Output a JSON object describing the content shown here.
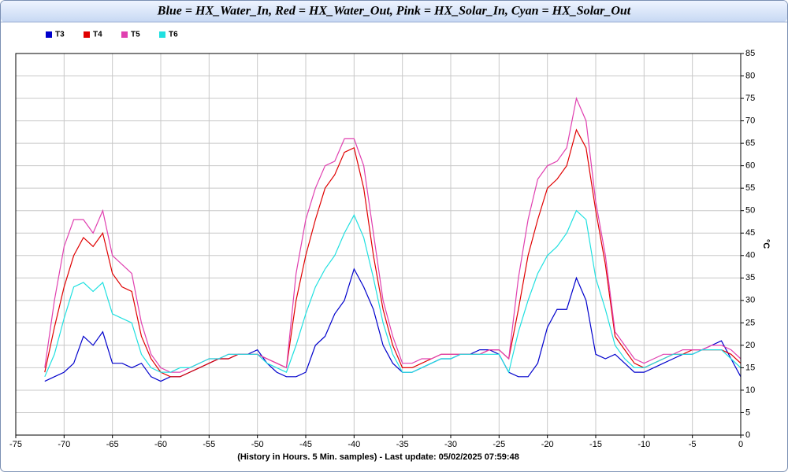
{
  "chart_data": {
    "type": "line",
    "title": "Blue = HX_Water_In, Red = HX_Water_Out, Pink = HX_Solar_In, Cyan = HX_Solar_Out",
    "x_label": "(History in Hours. 5 Min. samples) - Last update: 05/02/2025 07:59:48",
    "y_label": "°C",
    "x": [
      -72,
      -71,
      -70,
      -69,
      -68,
      -67,
      -66,
      -65,
      -64,
      -63,
      -62,
      -61,
      -60,
      -59,
      -58,
      -57,
      -56,
      -55,
      -54,
      -53,
      -52,
      -51,
      -50,
      -49,
      -48,
      -47,
      -46,
      -45,
      -44,
      -43,
      -42,
      -41,
      -40,
      -39,
      -38,
      -37,
      -36,
      -35,
      -34,
      -33,
      -32,
      -31,
      -30,
      -29,
      -28,
      -27,
      -26,
      -25,
      -24,
      -23,
      -22,
      -21,
      -20,
      -19,
      -18,
      -17,
      -16,
      -15,
      -14,
      -13,
      -12,
      -11,
      -10,
      -9,
      -8,
      -7,
      -6,
      -5,
      -4,
      -3,
      -2,
      -1,
      0
    ],
    "series": [
      {
        "name": "T3",
        "color": "#0000cc",
        "values": [
          12,
          13,
          14,
          16,
          22,
          20,
          23,
          16,
          16,
          15,
          16,
          13,
          12,
          13,
          13,
          14,
          15,
          16,
          17,
          17,
          18,
          18,
          19,
          16,
          14,
          13,
          13,
          14,
          20,
          22,
          27,
          30,
          37,
          33,
          28,
          20,
          16,
          14,
          14,
          15,
          16,
          17,
          17,
          18,
          18,
          19,
          19,
          18,
          14,
          13,
          13,
          16,
          24,
          28,
          28,
          35,
          30,
          18,
          17,
          18,
          16,
          14,
          14,
          15,
          16,
          17,
          18,
          18,
          19,
          20,
          21,
          17,
          13
        ]
      },
      {
        "name": "T4",
        "color": "#e00000",
        "values": [
          14,
          24,
          33,
          40,
          44,
          42,
          45,
          36,
          33,
          32,
          22,
          17,
          14,
          13,
          13,
          14,
          15,
          16,
          17,
          17,
          18,
          18,
          18,
          17,
          16,
          15,
          30,
          40,
          48,
          55,
          58,
          63,
          64,
          55,
          40,
          28,
          20,
          15,
          15,
          16,
          17,
          18,
          18,
          18,
          18,
          18,
          19,
          19,
          17,
          28,
          40,
          48,
          55,
          57,
          60,
          68,
          64,
          50,
          38,
          22,
          19,
          16,
          15,
          16,
          17,
          18,
          18,
          19,
          19,
          19,
          19,
          18,
          16
        ]
      },
      {
        "name": "T5",
        "color": "#e040b0",
        "values": [
          15,
          30,
          42,
          48,
          48,
          45,
          50,
          40,
          38,
          36,
          25,
          18,
          15,
          14,
          14,
          15,
          16,
          17,
          17,
          18,
          18,
          18,
          18,
          17,
          16,
          15,
          36,
          48,
          55,
          60,
          61,
          66,
          66,
          60,
          45,
          30,
          22,
          16,
          16,
          17,
          17,
          18,
          18,
          18,
          18,
          18,
          19,
          19,
          17,
          35,
          48,
          57,
          60,
          61,
          64,
          75,
          70,
          52,
          40,
          23,
          20,
          17,
          16,
          17,
          18,
          18,
          19,
          19,
          19,
          20,
          20,
          19,
          17
        ]
      },
      {
        "name": "T6",
        "color": "#20e0e0",
        "values": [
          13,
          18,
          26,
          33,
          34,
          32,
          34,
          27,
          26,
          25,
          18,
          15,
          14,
          14,
          15,
          15,
          16,
          17,
          17,
          18,
          18,
          18,
          18,
          16,
          15,
          14,
          20,
          27,
          33,
          37,
          40,
          45,
          49,
          44,
          35,
          25,
          18,
          14,
          14,
          15,
          16,
          17,
          17,
          18,
          18,
          18,
          18,
          18,
          14,
          23,
          30,
          36,
          40,
          42,
          45,
          50,
          48,
          35,
          28,
          20,
          17,
          15,
          15,
          16,
          17,
          18,
          18,
          18,
          19,
          19,
          19,
          17,
          15
        ]
      }
    ],
    "xlim": [
      -75,
      0
    ],
    "xticks": [
      -75,
      -70,
      -65,
      -60,
      -55,
      -50,
      -45,
      -40,
      -35,
      -30,
      -25,
      -20,
      -15,
      -10,
      -5,
      0
    ],
    "ylim": [
      0,
      85
    ],
    "yticks": [
      0,
      5,
      10,
      15,
      20,
      25,
      30,
      35,
      40,
      45,
      50,
      55,
      60,
      65,
      70,
      75,
      80,
      85
    ],
    "grid": true,
    "legend": "top-left"
  }
}
